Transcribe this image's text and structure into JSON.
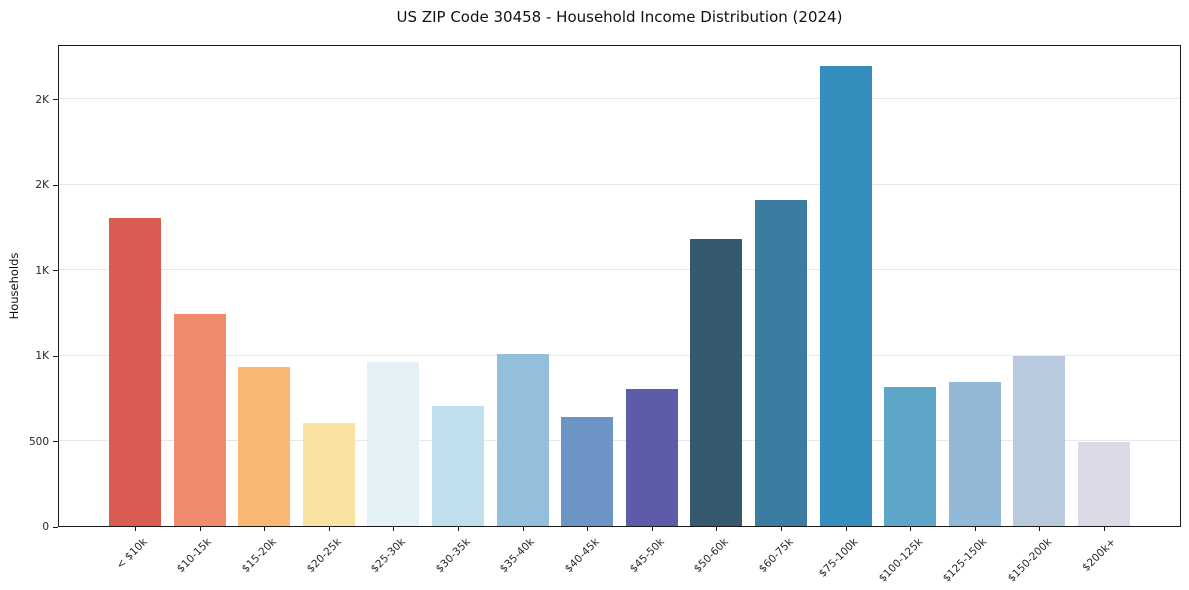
{
  "chart_data": {
    "type": "bar",
    "title": "US ZIP Code 30458 - Household Income Distribution (2024)",
    "xlabel": "",
    "ylabel": "Households",
    "ylim": [
      0,
      2820
    ],
    "grid": "horizontal",
    "legend": "none",
    "background": "#ffffff",
    "categories": [
      "< $10k",
      "$10-15k",
      "$15-20k",
      "$20-25k",
      "$25-30k",
      "$30-35k",
      "$35-40k",
      "$40-45k",
      "$45-50k",
      "$50-60k",
      "$60-75k",
      "$75-100k",
      "$100-125k",
      "$125-150k",
      "$150-200k",
      "$200k+"
    ],
    "values": [
      1800,
      1240,
      930,
      600,
      960,
      700,
      1005,
      635,
      800,
      1680,
      1910,
      2690,
      815,
      845,
      995,
      490
    ],
    "bar_colors": [
      "#d95b52",
      "#f28a6d",
      "#f9b873",
      "#fce2a0",
      "#e4f1f6",
      "#c0dfec",
      "#93bfdc",
      "#6c94c4",
      "#5c5caa",
      "#365a6d",
      "#3a7da1",
      "#358dbd",
      "#5ea6c8",
      "#92b8d8",
      "#bacade",
      "#d9dae6"
    ],
    "yticks": [
      {
        "value": 0,
        "label": "0"
      },
      {
        "value": 500,
        "label": "500"
      },
      {
        "value": 1000,
        "label": "1K"
      },
      {
        "value": 1500,
        "label": "1K"
      },
      {
        "value": 2000,
        "label": "2K"
      },
      {
        "value": 2500,
        "label": "2K"
      }
    ]
  }
}
